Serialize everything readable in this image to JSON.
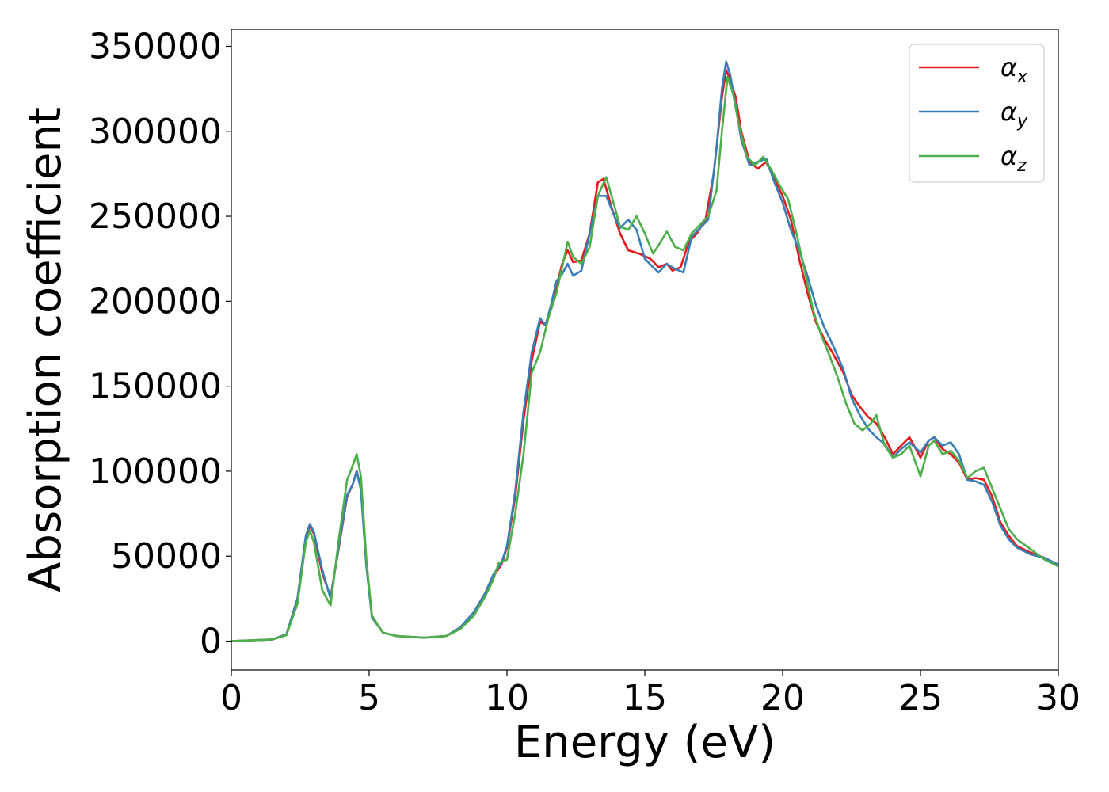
{
  "chart_data": {
    "type": "line",
    "title": "",
    "xlabel": "Energy (eV)",
    "ylabel": "Absorption coefficient",
    "xlim": [
      0,
      30
    ],
    "ylim": [
      -17000,
      360000
    ],
    "xticks": [
      0,
      5,
      10,
      15,
      20,
      25,
      30
    ],
    "yticks": [
      0,
      50000,
      100000,
      150000,
      200000,
      250000,
      300000,
      350000
    ],
    "grid": false,
    "legend_position": "top-right",
    "series": [
      {
        "name": "α_x",
        "symbol": "α",
        "subscript": "x",
        "color": "#e41a1c",
        "points": [
          [
            0,
            0
          ],
          [
            1.5,
            1000
          ],
          [
            2,
            4000
          ],
          [
            2.4,
            25000
          ],
          [
            2.7,
            60000
          ],
          [
            2.85,
            68000
          ],
          [
            3.0,
            63000
          ],
          [
            3.3,
            40000
          ],
          [
            3.6,
            26000
          ],
          [
            3.9,
            55000
          ],
          [
            4.2,
            85000
          ],
          [
            4.4,
            92000
          ],
          [
            4.55,
            100000
          ],
          [
            4.7,
            90000
          ],
          [
            4.9,
            45000
          ],
          [
            5.1,
            15000
          ],
          [
            5.5,
            5000
          ],
          [
            6,
            3000
          ],
          [
            7,
            2000
          ],
          [
            7.8,
            3000
          ],
          [
            8.3,
            8000
          ],
          [
            8.8,
            17000
          ],
          [
            9.2,
            28000
          ],
          [
            9.5,
            38000
          ],
          [
            9.8,
            45000
          ],
          [
            10.0,
            55000
          ],
          [
            10.3,
            85000
          ],
          [
            10.6,
            130000
          ],
          [
            10.9,
            165000
          ],
          [
            11.2,
            188000
          ],
          [
            11.4,
            186000
          ],
          [
            11.6,
            196000
          ],
          [
            11.8,
            208000
          ],
          [
            12.0,
            222000
          ],
          [
            12.2,
            230000
          ],
          [
            12.4,
            223000
          ],
          [
            12.7,
            224000
          ],
          [
            13.0,
            240000
          ],
          [
            13.3,
            270000
          ],
          [
            13.5,
            272000
          ],
          [
            13.8,
            255000
          ],
          [
            14.1,
            240000
          ],
          [
            14.4,
            230000
          ],
          [
            14.8,
            228000
          ],
          [
            15.2,
            225000
          ],
          [
            15.5,
            220000
          ],
          [
            15.8,
            222000
          ],
          [
            16.0,
            218000
          ],
          [
            16.3,
            220000
          ],
          [
            16.6,
            235000
          ],
          [
            16.9,
            240000
          ],
          [
            17.2,
            248000
          ],
          [
            17.5,
            275000
          ],
          [
            17.8,
            320000
          ],
          [
            17.95,
            336000
          ],
          [
            18.1,
            330000
          ],
          [
            18.3,
            320000
          ],
          [
            18.5,
            300000
          ],
          [
            18.8,
            282000
          ],
          [
            19.1,
            278000
          ],
          [
            19.4,
            282000
          ],
          [
            19.7,
            272000
          ],
          [
            20.0,
            262000
          ],
          [
            20.3,
            248000
          ],
          [
            20.6,
            225000
          ],
          [
            20.9,
            205000
          ],
          [
            21.2,
            188000
          ],
          [
            21.5,
            178000
          ],
          [
            21.8,
            170000
          ],
          [
            22.2,
            158000
          ],
          [
            22.5,
            145000
          ],
          [
            22.8,
            138000
          ],
          [
            23.1,
            132000
          ],
          [
            23.4,
            128000
          ],
          [
            23.7,
            120000
          ],
          [
            24.0,
            110000
          ],
          [
            24.3,
            115000
          ],
          [
            24.6,
            120000
          ],
          [
            25.0,
            108000
          ],
          [
            25.3,
            118000
          ],
          [
            25.5,
            120000
          ],
          [
            25.8,
            113000
          ],
          [
            26.1,
            110000
          ],
          [
            26.4,
            105000
          ],
          [
            26.7,
            95000
          ],
          [
            27.0,
            96000
          ],
          [
            27.3,
            95000
          ],
          [
            27.6,
            85000
          ],
          [
            27.9,
            70000
          ],
          [
            28.2,
            62000
          ],
          [
            28.5,
            56000
          ],
          [
            29.0,
            52000
          ],
          [
            29.5,
            49000
          ],
          [
            30.0,
            45000
          ]
        ]
      },
      {
        "name": "α_y",
        "symbol": "α",
        "subscript": "y",
        "color": "#377eb8",
        "points": [
          [
            0,
            0
          ],
          [
            1.5,
            1000
          ],
          [
            2,
            4000
          ],
          [
            2.4,
            25000
          ],
          [
            2.7,
            62000
          ],
          [
            2.85,
            69000
          ],
          [
            3.0,
            64000
          ],
          [
            3.3,
            42000
          ],
          [
            3.6,
            25000
          ],
          [
            3.9,
            56000
          ],
          [
            4.2,
            86000
          ],
          [
            4.4,
            92000
          ],
          [
            4.55,
            100000
          ],
          [
            4.7,
            89000
          ],
          [
            4.9,
            44000
          ],
          [
            5.1,
            14000
          ],
          [
            5.5,
            5000
          ],
          [
            6,
            3000
          ],
          [
            7,
            2000
          ],
          [
            7.8,
            3000
          ],
          [
            8.3,
            8000
          ],
          [
            8.8,
            17000
          ],
          [
            9.2,
            28000
          ],
          [
            9.5,
            39000
          ],
          [
            9.8,
            46000
          ],
          [
            10.0,
            56000
          ],
          [
            10.3,
            88000
          ],
          [
            10.6,
            135000
          ],
          [
            10.9,
            170000
          ],
          [
            11.2,
            190000
          ],
          [
            11.4,
            186000
          ],
          [
            11.6,
            198000
          ],
          [
            11.8,
            212000
          ],
          [
            12.0,
            216000
          ],
          [
            12.2,
            222000
          ],
          [
            12.4,
            215000
          ],
          [
            12.7,
            218000
          ],
          [
            13.0,
            240000
          ],
          [
            13.3,
            262000
          ],
          [
            13.6,
            262000
          ],
          [
            13.9,
            250000
          ],
          [
            14.1,
            243000
          ],
          [
            14.4,
            248000
          ],
          [
            14.7,
            242000
          ],
          [
            15.0,
            225000
          ],
          [
            15.3,
            220000
          ],
          [
            15.5,
            217000
          ],
          [
            15.8,
            222000
          ],
          [
            16.1,
            219000
          ],
          [
            16.4,
            217000
          ],
          [
            16.7,
            238000
          ],
          [
            17.0,
            243000
          ],
          [
            17.3,
            248000
          ],
          [
            17.6,
            290000
          ],
          [
            17.8,
            325000
          ],
          [
            17.95,
            341000
          ],
          [
            18.1,
            333000
          ],
          [
            18.3,
            315000
          ],
          [
            18.5,
            295000
          ],
          [
            18.8,
            280000
          ],
          [
            19.1,
            282000
          ],
          [
            19.4,
            284000
          ],
          [
            19.7,
            270000
          ],
          [
            20.0,
            258000
          ],
          [
            20.3,
            242000
          ],
          [
            20.6,
            230000
          ],
          [
            20.9,
            215000
          ],
          [
            21.2,
            198000
          ],
          [
            21.5,
            185000
          ],
          [
            21.8,
            175000
          ],
          [
            22.2,
            160000
          ],
          [
            22.5,
            143000
          ],
          [
            22.8,
            133000
          ],
          [
            23.1,
            125000
          ],
          [
            23.4,
            120000
          ],
          [
            23.7,
            116000
          ],
          [
            24.0,
            108000
          ],
          [
            24.3,
            113000
          ],
          [
            24.6,
            117000
          ],
          [
            25.0,
            111000
          ],
          [
            25.3,
            118000
          ],
          [
            25.5,
            120000
          ],
          [
            25.8,
            115000
          ],
          [
            26.1,
            117000
          ],
          [
            26.4,
            110000
          ],
          [
            26.7,
            95000
          ],
          [
            27.0,
            94000
          ],
          [
            27.3,
            92000
          ],
          [
            27.6,
            82000
          ],
          [
            27.9,
            68000
          ],
          [
            28.2,
            60000
          ],
          [
            28.5,
            55000
          ],
          [
            29.0,
            51000
          ],
          [
            29.5,
            49000
          ],
          [
            30.0,
            45000
          ]
        ]
      },
      {
        "name": "α_z",
        "symbol": "α",
        "subscript": "z",
        "color": "#4daf4a",
        "points": [
          [
            0,
            0
          ],
          [
            1.5,
            1000
          ],
          [
            2,
            3500
          ],
          [
            2.4,
            22000
          ],
          [
            2.7,
            58000
          ],
          [
            2.85,
            65000
          ],
          [
            3.0,
            58000
          ],
          [
            3.3,
            30000
          ],
          [
            3.6,
            21000
          ],
          [
            3.9,
            60000
          ],
          [
            4.2,
            95000
          ],
          [
            4.35,
            101000
          ],
          [
            4.55,
            110000
          ],
          [
            4.7,
            97000
          ],
          [
            4.9,
            48000
          ],
          [
            5.1,
            15000
          ],
          [
            5.5,
            5000
          ],
          [
            6,
            3000
          ],
          [
            7,
            2000
          ],
          [
            7.8,
            3000
          ],
          [
            8.3,
            7000
          ],
          [
            8.8,
            15000
          ],
          [
            9.2,
            26000
          ],
          [
            9.5,
            36000
          ],
          [
            9.7,
            46000
          ],
          [
            10.0,
            48000
          ],
          [
            10.3,
            75000
          ],
          [
            10.6,
            110000
          ],
          [
            10.9,
            158000
          ],
          [
            11.2,
            170000
          ],
          [
            11.5,
            190000
          ],
          [
            11.8,
            205000
          ],
          [
            12.0,
            220000
          ],
          [
            12.2,
            235000
          ],
          [
            12.4,
            226000
          ],
          [
            12.7,
            222000
          ],
          [
            13.0,
            232000
          ],
          [
            13.3,
            262000
          ],
          [
            13.6,
            273000
          ],
          [
            13.9,
            256000
          ],
          [
            14.1,
            244000
          ],
          [
            14.4,
            242000
          ],
          [
            14.7,
            250000
          ],
          [
            15.0,
            240000
          ],
          [
            15.3,
            228000
          ],
          [
            15.5,
            233000
          ],
          [
            15.8,
            241000
          ],
          [
            16.1,
            232000
          ],
          [
            16.4,
            230000
          ],
          [
            16.7,
            240000
          ],
          [
            17.0,
            245000
          ],
          [
            17.3,
            250000
          ],
          [
            17.6,
            265000
          ],
          [
            17.8,
            300000
          ],
          [
            18.0,
            332000
          ],
          [
            18.2,
            322000
          ],
          [
            18.4,
            305000
          ],
          [
            18.7,
            285000
          ],
          [
            19.0,
            280000
          ],
          [
            19.3,
            285000
          ],
          [
            19.6,
            277000
          ],
          [
            19.9,
            268000
          ],
          [
            20.2,
            260000
          ],
          [
            20.5,
            240000
          ],
          [
            20.8,
            218000
          ],
          [
            21.1,
            195000
          ],
          [
            21.4,
            180000
          ],
          [
            21.7,
            168000
          ],
          [
            22.0,
            155000
          ],
          [
            22.3,
            140000
          ],
          [
            22.6,
            128000
          ],
          [
            22.9,
            124000
          ],
          [
            23.2,
            128000
          ],
          [
            23.4,
            133000
          ],
          [
            23.7,
            115000
          ],
          [
            24.0,
            108000
          ],
          [
            24.3,
            110000
          ],
          [
            24.6,
            115000
          ],
          [
            25.0,
            97000
          ],
          [
            25.3,
            115000
          ],
          [
            25.5,
            118000
          ],
          [
            25.8,
            110000
          ],
          [
            26.1,
            112000
          ],
          [
            26.4,
            106000
          ],
          [
            26.7,
            96000
          ],
          [
            27.0,
            100000
          ],
          [
            27.3,
            102000
          ],
          [
            27.6,
            90000
          ],
          [
            27.9,
            78000
          ],
          [
            28.2,
            66000
          ],
          [
            28.5,
            60000
          ],
          [
            29.0,
            54000
          ],
          [
            29.5,
            48000
          ],
          [
            30.0,
            44000
          ]
        ]
      }
    ]
  }
}
